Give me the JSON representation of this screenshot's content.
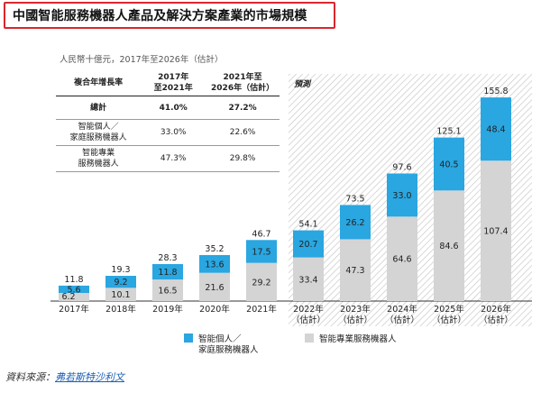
{
  "title": "中國智能服務機器人產品及解決方案產業的市場規模",
  "unit_label": "人民幣十億元，2017年至2026年（估計）",
  "forecast_label": "預測",
  "cagr_table": {
    "header": [
      "複合年增長率",
      "2017年\n至2021年",
      "2021年至\n2026年（估計）"
    ],
    "rows": [
      {
        "label": "總計",
        "a": "41.0%",
        "b": "27.2%"
      },
      {
        "label": "智能個人／\n家庭服務機器人",
        "a": "33.0%",
        "b": "22.6%"
      },
      {
        "label": "智能專業\n服務機器人",
        "a": "47.3%",
        "b": "29.8%"
      }
    ]
  },
  "legend": {
    "personal": "智能個人／\n家庭服務機器人",
    "professional": "智能專業服務機器人"
  },
  "colors": {
    "personal": "#2aa6e0",
    "professional": "#d4d4d4",
    "title_border": "#d9262e",
    "hatch": "#c8c8c8",
    "source_link": "#1a5fb4"
  },
  "source": {
    "label": "資料來源：",
    "value": "弗若斯特沙利文"
  },
  "chart_data": {
    "type": "bar",
    "stacked": true,
    "categories": [
      "2017年",
      "2018年",
      "2019年",
      "2020年",
      "2021年",
      "2022年\n（估計）",
      "2023年\n（估計）",
      "2024年\n（估計）",
      "2025年\n（估計）",
      "2026年\n（估計）"
    ],
    "series": [
      {
        "name": "智能專業服務機器人",
        "values": [
          6.2,
          10.1,
          16.5,
          21.6,
          29.2,
          33.4,
          47.3,
          64.6,
          84.6,
          107.4
        ]
      },
      {
        "name": "智能個人／家庭服務機器人",
        "values": [
          5.6,
          9.2,
          11.8,
          13.6,
          17.5,
          20.7,
          26.2,
          33.0,
          40.5,
          48.4
        ]
      }
    ],
    "totals": [
      11.8,
      19.3,
      28.3,
      35.2,
      46.7,
      54.1,
      73.5,
      97.6,
      125.1,
      155.8
    ],
    "forecast_start_index": 5,
    "ylim": [
      0,
      160
    ]
  }
}
